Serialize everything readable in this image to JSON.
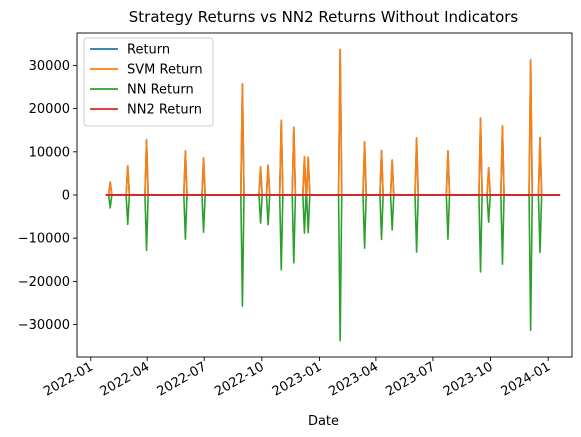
{
  "chart_data": {
    "type": "line",
    "title": "Strategy Returns vs NN2 Returns Without Indicators",
    "xlabel": "Date",
    "ylabel": "",
    "x_type": "date",
    "xlim": [
      "2021-12-10",
      "2024-02-08"
    ],
    "ylim": [
      -37500,
      37500
    ],
    "x_ticks": [
      {
        "label": "2022-01",
        "value": "2022-01-01"
      },
      {
        "label": "2022-04",
        "value": "2022-04-01"
      },
      {
        "label": "2022-07",
        "value": "2022-07-01"
      },
      {
        "label": "2022-10",
        "value": "2022-10-01"
      },
      {
        "label": "2023-01",
        "value": "2023-01-01"
      },
      {
        "label": "2023-04",
        "value": "2023-04-01"
      },
      {
        "label": "2023-07",
        "value": "2023-07-01"
      },
      {
        "label": "2023-10",
        "value": "2023-10-01"
      },
      {
        "label": "2024-01",
        "value": "2024-01-01"
      }
    ],
    "y_ticks": [
      -30000,
      -20000,
      -10000,
      0,
      10000,
      20000,
      30000
    ],
    "y_tick_labels": [
      "−30000",
      "−20000",
      "−10000",
      "0",
      "10000",
      "20000",
      "30000"
    ],
    "grid": false,
    "legend_position": "top-left",
    "spike_dates": [
      "2022-02-01",
      "2022-03-01",
      "2022-03-31",
      "2022-06-01",
      "2022-06-30",
      "2022-08-31",
      "2022-09-29",
      "2022-10-11",
      "2022-11-01",
      "2022-11-21",
      "2022-12-08",
      "2022-12-14",
      "2023-02-03",
      "2023-03-14",
      "2023-04-10",
      "2023-04-27",
      "2023-06-05",
      "2023-07-25",
      "2023-09-15",
      "2023-09-28",
      "2023-10-20",
      "2023-12-04",
      "2023-12-19"
    ],
    "spike_values": [
      3000,
      6800,
      12800,
      10200,
      8600,
      25700,
      6500,
      6900,
      17300,
      15700,
      8800,
      8700,
      33700,
      12300,
      10300,
      8100,
      13200,
      10200,
      17800,
      6300,
      16000,
      31300,
      13300
    ],
    "series": [
      {
        "name": "Return",
        "color": "#1f77b4",
        "sign": 1
      },
      {
        "name": "SVM Return",
        "color": "#ff7f0e",
        "sign": 1
      },
      {
        "name": "NN Return",
        "color": "#2ca02c",
        "sign": -1
      },
      {
        "name": "NN2 Return",
        "color": "#d62728",
        "sign": 0
      }
    ],
    "date_range": [
      "2022-01-25",
      "2024-01-20"
    ]
  }
}
